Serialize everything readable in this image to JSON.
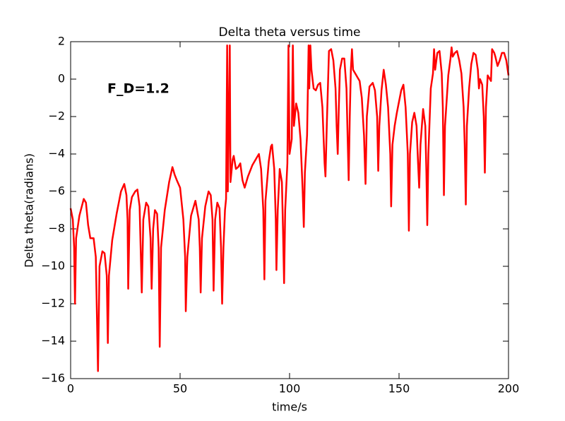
{
  "chart_data": {
    "type": "line",
    "title": "Delta theta versus time",
    "xlabel": "time/s",
    "ylabel": "Delta theta(radians)",
    "annotation": "F_D=1.2",
    "color": "#ff0000",
    "xlim": [
      0,
      200
    ],
    "ylim": [
      -16,
      2
    ],
    "xticks": [
      0,
      50,
      100,
      150,
      200
    ],
    "yticks": [
      {
        "value": -16,
        "label": "−16"
      },
      {
        "value": -14,
        "label": "−14"
      },
      {
        "value": -12,
        "label": "−12"
      },
      {
        "value": -10,
        "label": "−10"
      },
      {
        "value": -8,
        "label": "−8"
      },
      {
        "value": -6,
        "label": "−6"
      },
      {
        "value": -4,
        "label": "−4"
      },
      {
        "value": -2,
        "label": "−2"
      },
      0,
      2
    ],
    "x": [
      0,
      1,
      1.6,
      2,
      2.5,
      4,
      6,
      7,
      8,
      9,
      10.5,
      11.5,
      12.5,
      13.2,
      14.5,
      15.5,
      16.5,
      17,
      17.5,
      19,
      21,
      23,
      24.5,
      25.5,
      26,
      26.3,
      27,
      28,
      29.5,
      30.5,
      31.5,
      32.5,
      33.2,
      34.5,
      35.5,
      36.5,
      37,
      37.7,
      38.5,
      39.5,
      40.2,
      40.7,
      41.3,
      43,
      45,
      46.5,
      47.5,
      48.5,
      50,
      51.5,
      52.3,
      52.6,
      53.3,
      55,
      57,
      58.5,
      59,
      59.4,
      60,
      61.5,
      63,
      64,
      64.8,
      65.3,
      66,
      67,
      68,
      68.7,
      69.2,
      69.8,
      70.5,
      71,
      71.5,
      71.8,
      72.7,
      73,
      74,
      74.5,
      75.5,
      76.5,
      77.5,
      78.5,
      79.5,
      81,
      83,
      85,
      86,
      87,
      88,
      88.5,
      89,
      90.5,
      91.5,
      92,
      93,
      93.7,
      94,
      94.6,
      95.5,
      96.5,
      97,
      97.5,
      98,
      99,
      99.5,
      100,
      101,
      101.5,
      102,
      103,
      104,
      105,
      106,
      106.5,
      107,
      108,
      108.7,
      109,
      109.5,
      110,
      111,
      112,
      113,
      114,
      115,
      116,
      116.4,
      117,
      118,
      119,
      120,
      121,
      121.5,
      122,
      122.5,
      123,
      124,
      125,
      126,
      126.5,
      127,
      127.5,
      128,
      128.5,
      129,
      130,
      131,
      132,
      133,
      134,
      134.7,
      135.3,
      136.5,
      138,
      139,
      140,
      140.5,
      141,
      142,
      143,
      144,
      145,
      146,
      146.4,
      147,
      148,
      149,
      150,
      151,
      152,
      153,
      154,
      154.5,
      155,
      156,
      157,
      158,
      158.7,
      159.2,
      159.8,
      161,
      162,
      162.5,
      162.9,
      163.4,
      164.5,
      165.5,
      166,
      166.5,
      167.5,
      168.5,
      169.5,
      170,
      170.5,
      171,
      172.5,
      173.5,
      174,
      174.5,
      175.5,
      176.5,
      177.5,
      178.5,
      179.5,
      180,
      180.5,
      181,
      182,
      183,
      184,
      185,
      186,
      186.5,
      187,
      188,
      188.7,
      189.2,
      189.7,
      190.5,
      191.5,
      192,
      192.5,
      193.5,
      194,
      195,
      196,
      197,
      198,
      199,
      200
    ],
    "values": [
      -6.9,
      -7.5,
      -9,
      -12,
      -8.5,
      -7.3,
      -6.4,
      -6.6,
      -7.8,
      -8.5,
      -8.5,
      -9.5,
      -15.6,
      -10,
      -9.2,
      -9.3,
      -10.5,
      -14.1,
      -10.5,
      -8.6,
      -7.2,
      -6,
      -5.6,
      -6.2,
      -7.5,
      -11.2,
      -7,
      -6.3,
      -6,
      -5.9,
      -6.8,
      -11.4,
      -7.5,
      -6.6,
      -6.8,
      -8.5,
      -11.2,
      -8,
      -7,
      -7.2,
      -9,
      -14.3,
      -9,
      -7,
      -5.5,
      -4.7,
      -5.1,
      -5.4,
      -5.8,
      -7.5,
      -9.5,
      -12.4,
      -9.5,
      -7.3,
      -6.5,
      -7.5,
      -9,
      -11.4,
      -8.5,
      -6.8,
      -6,
      -6.2,
      -7.5,
      -11.3,
      -7.5,
      -6.6,
      -6.9,
      -9,
      -12,
      -9,
      -7,
      -6.4,
      1.8,
      -6,
      1.8,
      -5.5,
      -4.3,
      -4.1,
      -4.8,
      -4.7,
      -4.5,
      -5.4,
      -5.8,
      -5.2,
      -4.6,
      -4.2,
      -4,
      -4.8,
      -7,
      -10.7,
      -6.5,
      -4.4,
      -3.6,
      -3.5,
      -4.8,
      -7.5,
      -10.2,
      -7,
      -4.8,
      -5.5,
      -8,
      -10.9,
      -7,
      -4.5,
      1.8,
      -4,
      -3.2,
      1.8,
      -2.5,
      -1.3,
      -1.8,
      -3.2,
      -6,
      -7.9,
      -5,
      -3,
      1.8,
      -0.5,
      1.8,
      0.5,
      -0.5,
      -0.6,
      -0.3,
      -0.2,
      -1.5,
      -4.5,
      -5.2,
      -2.5,
      1.5,
      1.6,
      1,
      -0.5,
      -2.5,
      -4,
      -1.5,
      0.5,
      1.1,
      1.1,
      -0.5,
      -3,
      -5.4,
      -2,
      0.5,
      1.6,
      0.5,
      0.3,
      0.1,
      -0.1,
      -1,
      -3,
      -5.6,
      -2,
      -0.4,
      -0.2,
      -0.6,
      -2,
      -4.9,
      -2.5,
      -0.6,
      0.5,
      -0.3,
      -1.5,
      -4,
      -6.8,
      -3.5,
      -2.5,
      -1.8,
      -1.2,
      -0.6,
      -0.3,
      -1.5,
      -4,
      -8.1,
      -4,
      -2.3,
      -1.8,
      -2.5,
      -4.5,
      -5.8,
      -3.5,
      -1.6,
      -2.5,
      -5,
      -7.8,
      -4,
      -0.5,
      0.3,
      1.6,
      0.5,
      1.4,
      1.5,
      0.3,
      -1.5,
      -6.2,
      -2.5,
      0.2,
      1.1,
      1.7,
      1.2,
      1.4,
      1.5,
      1,
      0.3,
      -1.5,
      -3.5,
      -6.7,
      -2.5,
      -0.5,
      0.8,
      1.4,
      1.3,
      0.5,
      -0.5,
      0,
      -0.3,
      -2,
      -5,
      -1.5,
      0.2,
      0,
      -0.1,
      1.6,
      1.4,
      1.2,
      0.7,
      1,
      1.4,
      1.4,
      1,
      0.2
    ]
  }
}
